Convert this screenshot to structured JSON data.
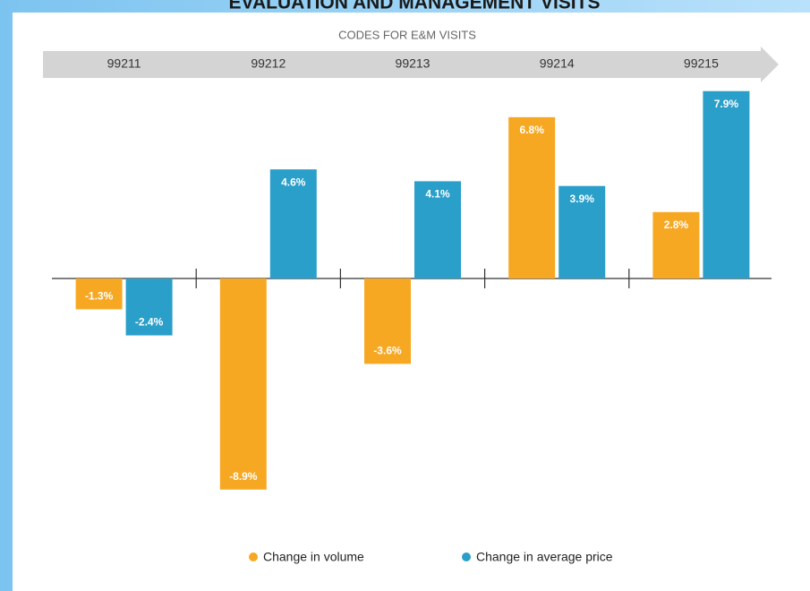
{
  "chart_data": {
    "type": "bar",
    "title": "EVALUATION AND MANAGEMENT VISITS",
    "subtitle": "CODES FOR E&M VISITS",
    "categories": [
      "99211",
      "99212",
      "99213",
      "99214",
      "99215"
    ],
    "series": [
      {
        "name": "Change in volume",
        "color": "#f7a823",
        "values": [
          -1.3,
          -8.9,
          -3.6,
          6.8,
          2.8
        ],
        "value_labels": [
          "-1.3%",
          "-8.9%",
          "-3.6%",
          "6.8%",
          "2.8%"
        ]
      },
      {
        "name": "Change in average price",
        "color": "#2a9fca",
        "values": [
          -2.4,
          4.6,
          4.1,
          3.9,
          7.9
        ],
        "value_labels": [
          "-2.4%",
          "4.6%",
          "4.1%",
          "3.9%",
          "7.9%"
        ]
      }
    ]
  }
}
